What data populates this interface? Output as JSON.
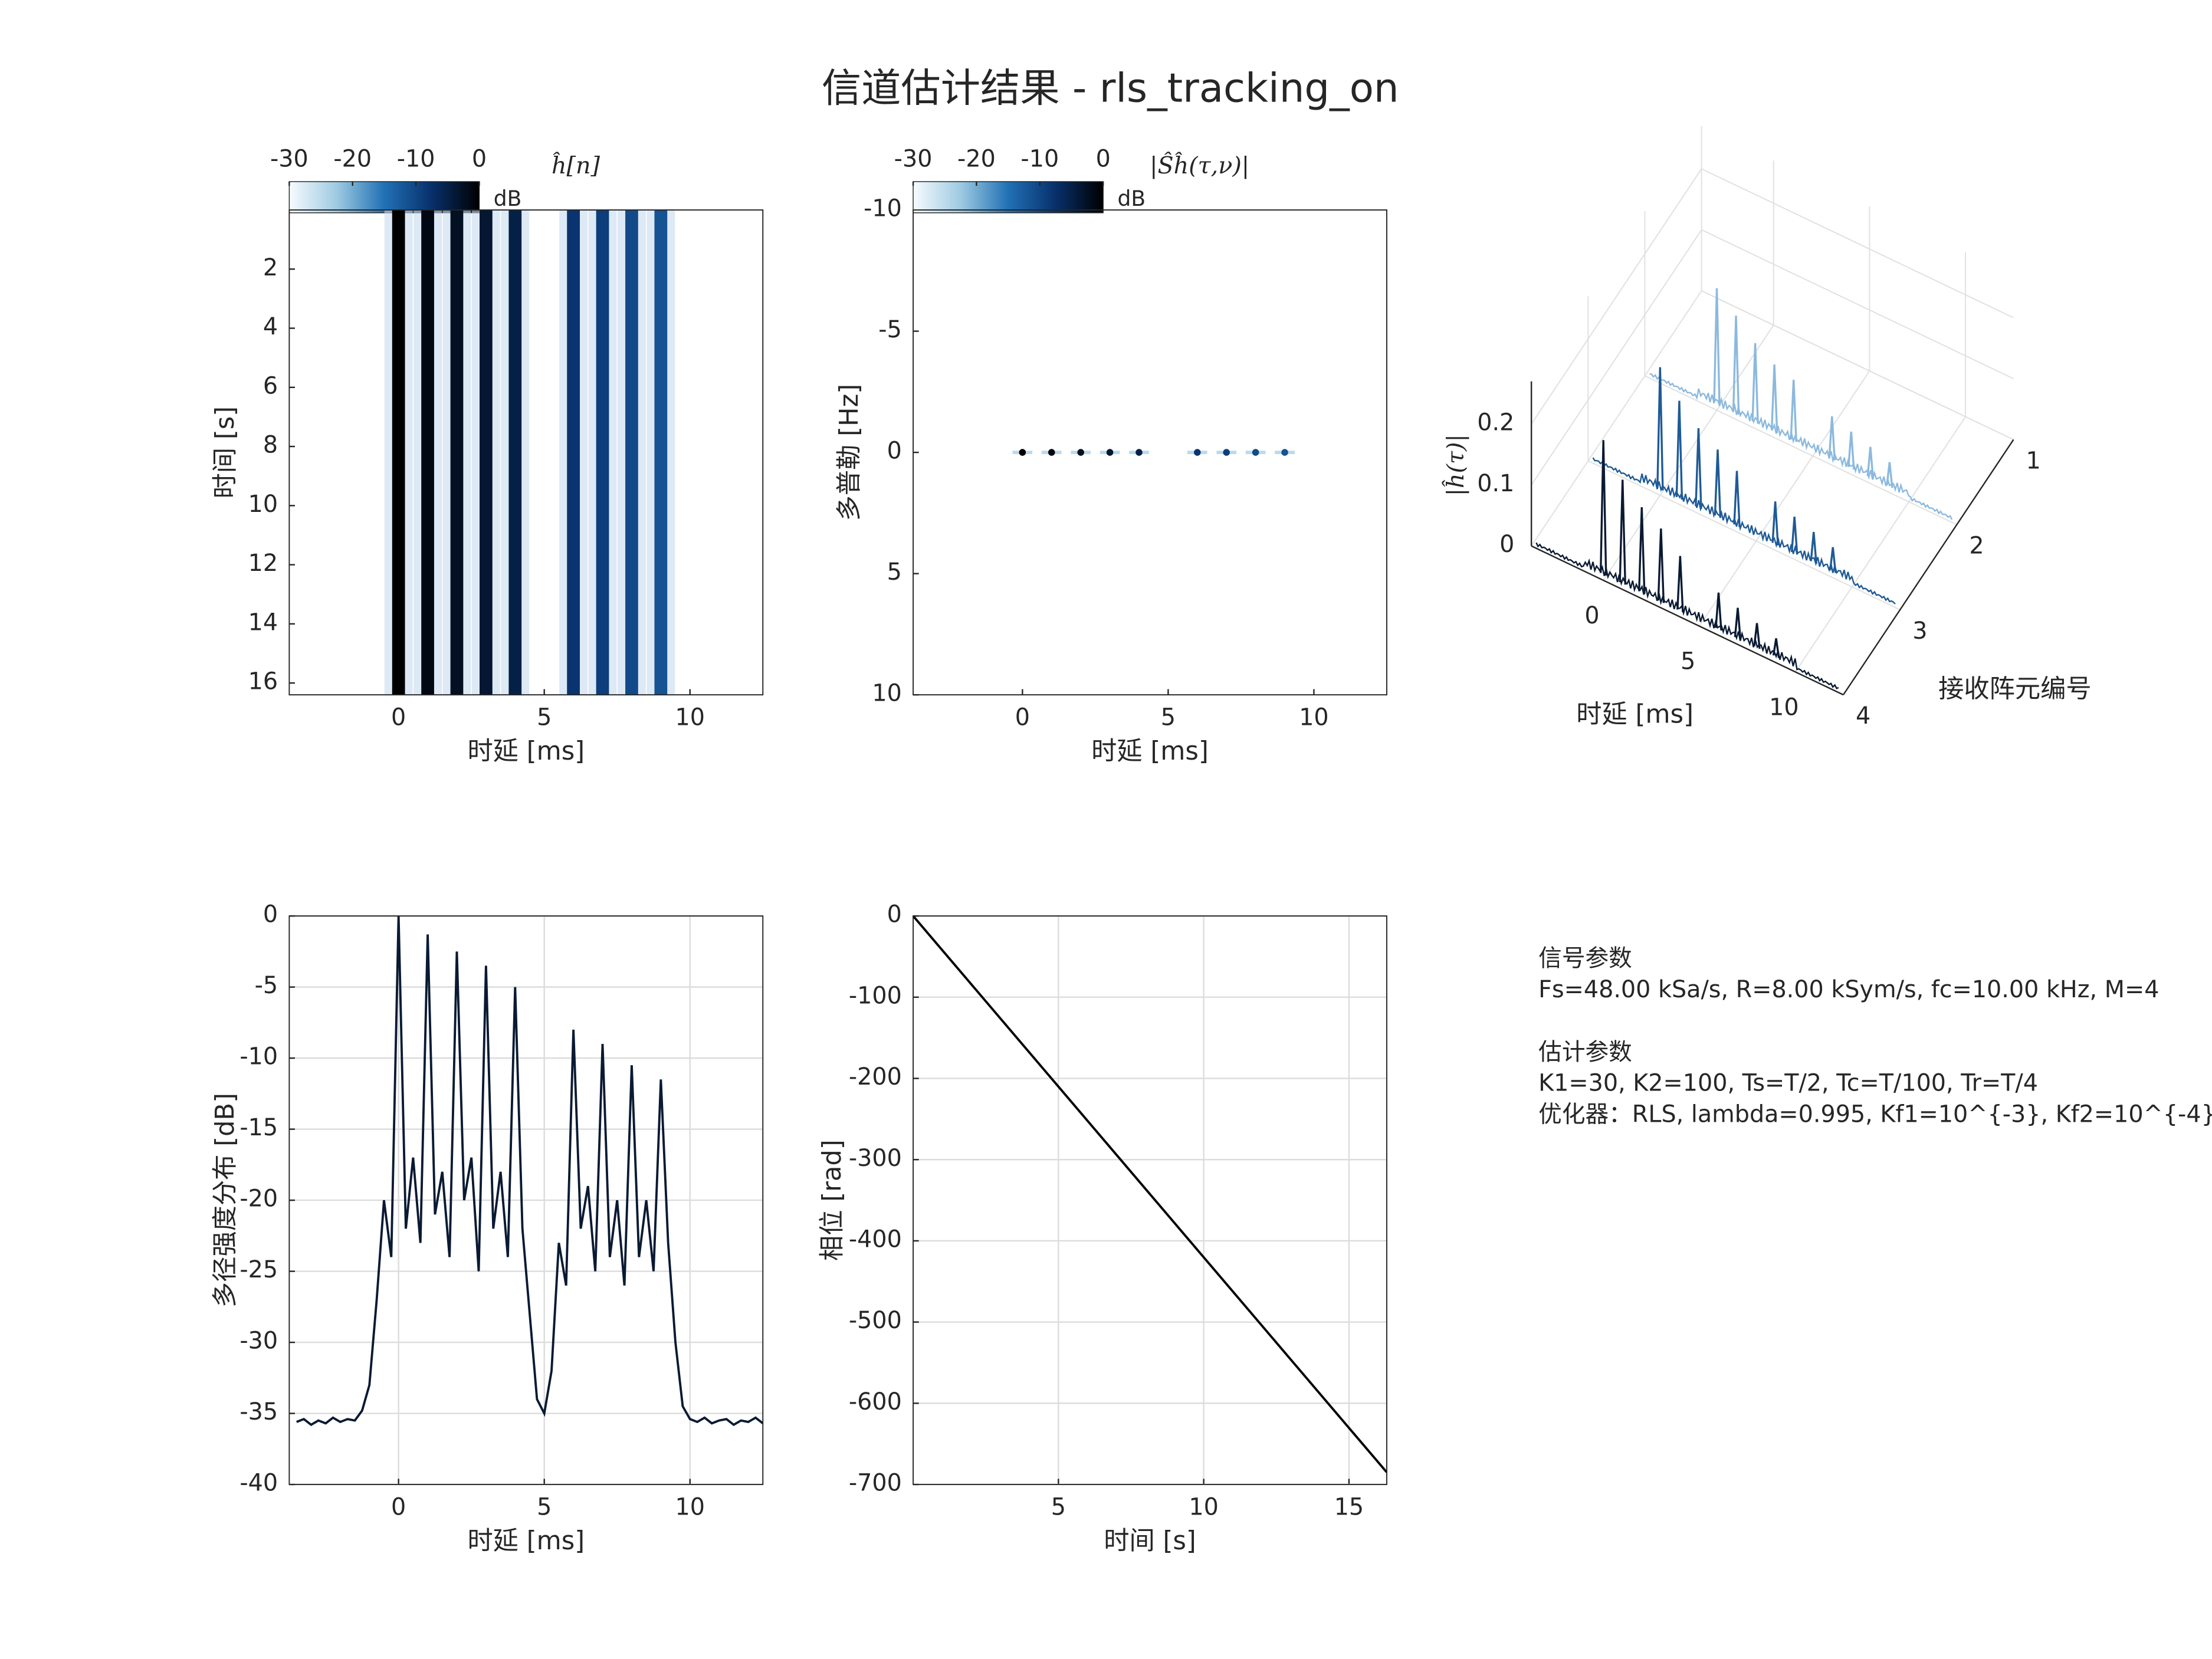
{
  "figure_title": "信道估计结果 - rls_tracking_on",
  "chart_data": [
    {
      "type": "heatmap",
      "title": "ĥ[n]",
      "xlabel": "时延 [ms]",
      "ylabel": "时间 [s]",
      "xlim": [
        -3.75,
        12.5
      ],
      "ylim": [
        0,
        16.4
      ],
      "y_reversed": true,
      "grid": false,
      "xticks": [
        0,
        5,
        10
      ],
      "yticks": [
        2,
        4,
        6,
        8,
        10,
        12,
        14,
        16
      ],
      "x": [
        0,
        1,
        2,
        3,
        4,
        6,
        7,
        8,
        9
      ],
      "values": [
        0,
        -1.3,
        -2.5,
        -3.5,
        -5,
        -8,
        -9,
        -10.5,
        -11.5
      ],
      "colorbar": {
        "label": "dB",
        "clim": [
          -30,
          0
        ],
        "ticks": [
          -30,
          -20,
          -10,
          0
        ]
      },
      "colormap": [
        "#f7fbff",
        "#9ecae1",
        "#2171b5",
        "#08306b",
        "#000000"
      ]
    },
    {
      "type": "scatter",
      "title": "|Ŝĥ(τ,ν)|",
      "xlabel": "时延 [ms]",
      "ylabel": "多普勒 [Hz]",
      "xlim": [
        -3.75,
        12.5
      ],
      "ylim": [
        -10,
        10
      ],
      "y_reversed": true,
      "grid": false,
      "xticks": [
        0,
        5,
        10
      ],
      "yticks": [
        -10,
        -5,
        0,
        5,
        10
      ],
      "x": [
        0,
        1,
        2,
        3,
        4,
        6,
        7,
        8,
        9
      ],
      "y": [
        0,
        0,
        0,
        0,
        0,
        0,
        0,
        0,
        0
      ],
      "values": [
        0,
        -1.3,
        -2.5,
        -3.5,
        -5,
        -8,
        -9,
        -10.5,
        -11.5
      ],
      "colorbar": {
        "label": "dB",
        "clim": [
          -30,
          0
        ],
        "ticks": [
          -30,
          -20,
          -10,
          0
        ]
      },
      "colormap": [
        "#f7fbff",
        "#9ecae1",
        "#2171b5",
        "#08306b",
        "#000000"
      ]
    },
    {
      "type": "waterfall3d",
      "xlabel": "时延 [ms]",
      "ylabel": "接收阵元编号",
      "zlabel": "|ĥ(τ)|",
      "xlim": [
        -3.75,
        12.5
      ],
      "xticks": [
        0,
        5,
        10
      ],
      "ylim": [
        1,
        4
      ],
      "yticks": [
        1,
        2,
        3,
        4
      ],
      "zlim": [
        0,
        0.27
      ],
      "zticks": [
        0,
        0.1,
        0.2
      ],
      "x": [
        0,
        1,
        2,
        3,
        4,
        6,
        7,
        8,
        9
      ],
      "series": [
        {
          "y": 2,
          "color": "#8cb9de",
          "values": [
            0.2,
            0.17,
            0.14,
            0.12,
            0.11,
            0.08,
            0.07,
            0.06,
            0.05
          ]
        },
        {
          "y": 3,
          "color": "#1f5a96",
          "values": [
            0.21,
            0.17,
            0.14,
            0.12,
            0.1,
            0.08,
            0.07,
            0.06,
            0.05
          ]
        },
        {
          "y": 4,
          "color": "#0a1a33",
          "values": [
            0.23,
            0.18,
            0.15,
            0.13,
            0.1,
            0.07,
            0.06,
            0.05,
            0.04
          ]
        }
      ]
    },
    {
      "type": "line",
      "xlabel": "时延 [ms]",
      "ylabel": "多径强度分布 [dB]",
      "xlim": [
        -3.75,
        12.5
      ],
      "ylim": [
        -40,
        0
      ],
      "grid": true,
      "color": "#0a1a33",
      "xticks": [
        0,
        5,
        10
      ],
      "yticks": [
        -40,
        -35,
        -30,
        -25,
        -20,
        -15,
        -10,
        -5,
        0
      ],
      "x": [
        -3.5,
        -3.25,
        -3,
        -2.75,
        -2.5,
        -2.25,
        -2,
        -1.75,
        -1.5,
        -1.25,
        -1,
        -0.75,
        -0.5,
        -0.25,
        0,
        0.25,
        0.5,
        0.75,
        1,
        1.25,
        1.5,
        1.75,
        2,
        2.25,
        2.5,
        2.75,
        3,
        3.25,
        3.5,
        3.75,
        4,
        4.25,
        4.5,
        4.75,
        5,
        5.25,
        5.5,
        5.75,
        6,
        6.25,
        6.5,
        6.75,
        7,
        7.25,
        7.5,
        7.75,
        8,
        8.25,
        8.5,
        8.75,
        9,
        9.25,
        9.5,
        9.75,
        10,
        10.25,
        10.5,
        10.75,
        11,
        11.25,
        11.5,
        11.75,
        12,
        12.25,
        12.5
      ],
      "values": [
        -35.6,
        -35.4,
        -35.8,
        -35.5,
        -35.7,
        -35.3,
        -35.6,
        -35.4,
        -35.5,
        -34.8,
        -33,
        -27,
        -20,
        -24,
        0,
        -22,
        -17,
        -23,
        -1.3,
        -21,
        -18,
        -24,
        -2.5,
        -20,
        -17,
        -25,
        -3.5,
        -22,
        -18,
        -24,
        -5,
        -22,
        -28,
        -34,
        -35,
        -32,
        -23,
        -26,
        -8,
        -22,
        -19,
        -25,
        -9,
        -24,
        -20,
        -26,
        -10.5,
        -24,
        -20,
        -25,
        -11.5,
        -23,
        -30,
        -34.5,
        -35.4,
        -35.6,
        -35.3,
        -35.7,
        -35.5,
        -35.4,
        -35.8,
        -35.5,
        -35.6,
        -35.3,
        -35.7
      ]
    },
    {
      "type": "line",
      "xlabel": "时间 [s]",
      "ylabel": "相位 [rad]",
      "xlim": [
        0,
        16.3
      ],
      "ylim": [
        -700,
        0
      ],
      "grid": true,
      "color": "#000000",
      "xticks": [
        5,
        10,
        15
      ],
      "yticks": [
        -700,
        -600,
        -500,
        -400,
        -300,
        -200,
        -100,
        0
      ],
      "x": [
        0,
        16.3
      ],
      "values": [
        0,
        -685
      ]
    }
  ],
  "text_box": {
    "lines": [
      "信号参数",
      "Fs=48.00 kSa/s, R=8.00 kSym/s, fc=10.00 kHz, M=4",
      "估计参数",
      "K1=30, K2=100, Ts=T/2, Tc=T/100, Tr=T/4",
      "优化器：RLS, lambda=0.995, Kf1=10^{-3}, Kf2=10^{-4}"
    ]
  }
}
